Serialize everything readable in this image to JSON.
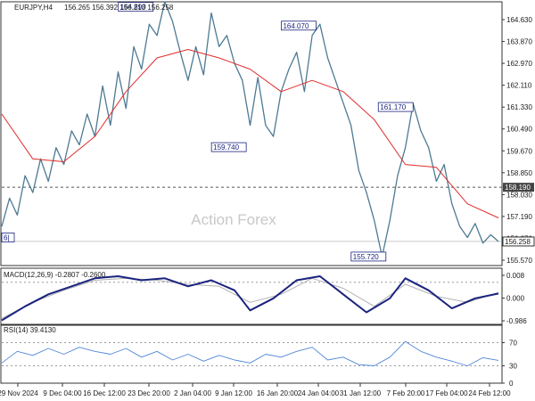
{
  "chart_data": {
    "type": "line",
    "header": {
      "symbol": "EURJPY,H4",
      "ohlc": [
        "156.265",
        "156.392",
        "156.213",
        "156.258"
      ]
    },
    "watermark": "Action Forex",
    "colors": {
      "price": "#4d7a93",
      "sma": "#e02b2b",
      "macd": "#1a237e",
      "macd_signal": "#b0b0b0",
      "rsi": "#4f86d9",
      "label_box": "#1a237e",
      "hline": "#555555"
    },
    "x_tick_labels": [
      "29 Nov 2024",
      "9 Dec 04:00",
      "16 Dec 12:00",
      "23 Dec 20:00",
      "2 Jan 04:00",
      "9 Jan 12:00",
      "16 Jan 20:00",
      "24 Jan 04:00",
      "31 Jan 12:00",
      "7 Feb 20:00",
      "17 Feb 04:00",
      "24 Feb 12:00"
    ],
    "price_panel": {
      "ylim": [
        155.4,
        164.8
      ],
      "y_ticks": [
        "164.630",
        "163.870",
        "162.970",
        "162.110",
        "161.330",
        "160.490",
        "159.670",
        "158.850",
        "158.030",
        "157.190",
        "156.370",
        "155.570"
      ],
      "price_series": [
        [
          0,
          156.8
        ],
        [
          2,
          157.8
        ],
        [
          4,
          157.2
        ],
        [
          6,
          158.6
        ],
        [
          8,
          158.0
        ],
        [
          10,
          159.2
        ],
        [
          12,
          158.4
        ],
        [
          14,
          159.6
        ],
        [
          16,
          159.0
        ],
        [
          18,
          160.2
        ],
        [
          20,
          159.7
        ],
        [
          22,
          160.8
        ],
        [
          24,
          160.0
        ],
        [
          26,
          161.8
        ],
        [
          28,
          160.4
        ],
        [
          30,
          162.3
        ],
        [
          32,
          161.0
        ],
        [
          34,
          163.2
        ],
        [
          36,
          162.4
        ],
        [
          38,
          164.0
        ],
        [
          40,
          163.6
        ],
        [
          42,
          164.8
        ],
        [
          44,
          164.1
        ],
        [
          46,
          163.0
        ],
        [
          48,
          162.0
        ],
        [
          50,
          163.2
        ],
        [
          52,
          162.2
        ],
        [
          54,
          164.4
        ],
        [
          56,
          163.2
        ],
        [
          58,
          163.6
        ],
        [
          60,
          162.6
        ],
        [
          62,
          162.0
        ],
        [
          64,
          160.4
        ],
        [
          66,
          162.1
        ],
        [
          68,
          160.4
        ],
        [
          70,
          160.0
        ],
        [
          72,
          161.6
        ],
        [
          74,
          162.4
        ],
        [
          76,
          163.0
        ],
        [
          78,
          161.6
        ],
        [
          80,
          163.6
        ],
        [
          82,
          164.0
        ],
        [
          84,
          162.8
        ],
        [
          86,
          162.0
        ],
        [
          88,
          161.2
        ],
        [
          90,
          160.4
        ],
        [
          92,
          158.8
        ],
        [
          94,
          158.0
        ],
        [
          96,
          157.0
        ],
        [
          98,
          155.72
        ],
        [
          100,
          157.0
        ],
        [
          102,
          158.6
        ],
        [
          104,
          159.6
        ],
        [
          106,
          161.17
        ],
        [
          108,
          160.2
        ],
        [
          110,
          159.6
        ],
        [
          112,
          158.4
        ],
        [
          114,
          159.0
        ],
        [
          116,
          157.6
        ],
        [
          118,
          156.8
        ],
        [
          120,
          156.4
        ],
        [
          122,
          156.9
        ],
        [
          124,
          156.2
        ],
        [
          126,
          156.5
        ],
        [
          128,
          156.258
        ]
      ],
      "sma_series": [
        [
          0,
          160.8
        ],
        [
          8,
          159.2
        ],
        [
          16,
          159.1
        ],
        [
          24,
          160.0
        ],
        [
          32,
          161.6
        ],
        [
          40,
          162.8
        ],
        [
          48,
          163.1
        ],
        [
          56,
          162.8
        ],
        [
          64,
          162.4
        ],
        [
          72,
          161.6
        ],
        [
          80,
          162.0
        ],
        [
          88,
          161.6
        ],
        [
          96,
          160.6
        ],
        [
          104,
          159.0
        ],
        [
          112,
          158.9
        ],
        [
          120,
          157.6
        ],
        [
          128,
          157.1
        ]
      ],
      "price_labels": [
        {
          "text": "164.890",
          "x": 39,
          "y": 164.62,
          "anchor": "end"
        },
        {
          "text": "159.740",
          "x": 63,
          "y": 159.62,
          "anchor": "end"
        },
        {
          "text": "164.070",
          "x": 81,
          "y": 163.95,
          "anchor": "end"
        },
        {
          "text": "161.170",
          "x": 106,
          "y": 161.05,
          "anchor": "end"
        },
        {
          "text": "155.720",
          "x": 99,
          "y": 155.72,
          "anchor": "end"
        },
        {
          "text": "6|",
          "x": 0,
          "y": 156.4,
          "anchor": "start"
        }
      ],
      "hline": {
        "value": 158.19,
        "label": "158.190"
      },
      "current": {
        "value": 156.258,
        "label": "156.258"
      }
    },
    "macd_panel": {
      "title": "MACD(12,26,9) -0.2807 -0.2600",
      "ylim": [
        -1.05,
        0.35
      ],
      "y_ticks": [
        "0.008",
        "0.000",
        "-0.986"
      ],
      "macd_series": [
        [
          0,
          -0.95
        ],
        [
          6,
          -0.6
        ],
        [
          12,
          -0.3
        ],
        [
          18,
          -0.1
        ],
        [
          24,
          0.1
        ],
        [
          30,
          0.15
        ],
        [
          36,
          0.05
        ],
        [
          42,
          0.1
        ],
        [
          48,
          -0.1
        ],
        [
          54,
          0.05
        ],
        [
          60,
          -0.2
        ],
        [
          64,
          -0.7
        ],
        [
          70,
          -0.4
        ],
        [
          76,
          0.05
        ],
        [
          82,
          0.15
        ],
        [
          88,
          -0.3
        ],
        [
          94,
          -0.75
        ],
        [
          100,
          -0.4
        ],
        [
          104,
          0.1
        ],
        [
          110,
          -0.2
        ],
        [
          116,
          -0.65
        ],
        [
          122,
          -0.4
        ],
        [
          128,
          -0.28
        ]
      ],
      "signal_series": [
        [
          0,
          -0.9
        ],
        [
          8,
          -0.5
        ],
        [
          16,
          -0.2
        ],
        [
          24,
          0.05
        ],
        [
          32,
          0.1
        ],
        [
          40,
          0.05
        ],
        [
          48,
          -0.05
        ],
        [
          56,
          -0.1
        ],
        [
          64,
          -0.5
        ],
        [
          72,
          -0.3
        ],
        [
          80,
          0.1
        ],
        [
          88,
          -0.15
        ],
        [
          96,
          -0.6
        ],
        [
          104,
          -0.05
        ],
        [
          112,
          -0.35
        ],
        [
          120,
          -0.5
        ],
        [
          128,
          -0.26
        ]
      ]
    },
    "rsi_panel": {
      "title": "RSI(14) 39.4130",
      "ylim": [
        0,
        100
      ],
      "y_ticks": [
        "70",
        "30",
        "0"
      ],
      "series": [
        [
          0,
          35
        ],
        [
          4,
          55
        ],
        [
          8,
          48
        ],
        [
          12,
          60
        ],
        [
          16,
          50
        ],
        [
          20,
          62
        ],
        [
          24,
          55
        ],
        [
          28,
          50
        ],
        [
          32,
          60
        ],
        [
          36,
          45
        ],
        [
          40,
          55
        ],
        [
          44,
          40
        ],
        [
          48,
          50
        ],
        [
          52,
          38
        ],
        [
          56,
          48
        ],
        [
          60,
          40
        ],
        [
          64,
          35
        ],
        [
          68,
          50
        ],
        [
          72,
          45
        ],
        [
          76,
          55
        ],
        [
          80,
          62
        ],
        [
          84,
          40
        ],
        [
          88,
          45
        ],
        [
          92,
          32
        ],
        [
          96,
          30
        ],
        [
          100,
          45
        ],
        [
          104,
          72
        ],
        [
          108,
          55
        ],
        [
          112,
          45
        ],
        [
          116,
          38
        ],
        [
          120,
          30
        ],
        [
          124,
          44
        ],
        [
          128,
          39.4
        ]
      ]
    }
  }
}
